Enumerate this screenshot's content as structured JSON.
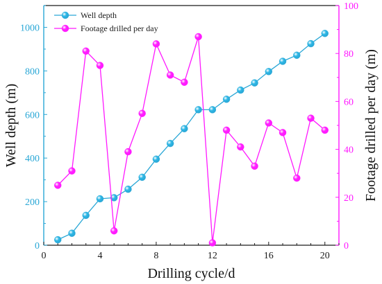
{
  "chart_data": {
    "type": "line",
    "xlabel": "Drilling cycle/d",
    "ylabel_left": "Well depth (m)",
    "ylabel_right": "Footage drilled per day (m)",
    "xlim": [
      0,
      21
    ],
    "ylim_left": [
      0,
      1100
    ],
    "ylim_right": [
      0,
      100
    ],
    "x_ticks": [
      0,
      4,
      8,
      12,
      16,
      20
    ],
    "y_left_ticks": [
      0,
      200,
      400,
      600,
      800,
      1000
    ],
    "y_right_ticks": [
      0,
      20,
      40,
      60,
      80,
      100
    ],
    "grid": false,
    "legend_position": "top-left",
    "x": [
      1,
      2,
      3,
      4,
      5,
      6,
      7,
      8,
      9,
      10,
      11,
      12,
      13,
      14,
      15,
      16,
      17,
      18,
      19,
      20
    ],
    "series": [
      {
        "name": "Well depth",
        "axis": "left",
        "color": "#29a7d6",
        "marker_color": "#2fb8e6",
        "values": [
          25,
          55,
          137,
          213,
          218,
          257,
          312,
          395,
          467,
          535,
          622,
          622,
          670,
          712,
          745,
          797,
          844,
          872,
          925,
          972
        ]
      },
      {
        "name": "Footage drilled per day",
        "axis": "right",
        "color": "#ff18ff",
        "marker_color": "#ff22ff",
        "values": [
          25,
          31,
          81,
          75,
          6,
          39,
          55,
          84,
          71,
          68,
          87,
          1,
          48,
          41,
          33,
          51,
          47,
          28,
          53,
          48
        ]
      }
    ],
    "colors": {
      "left_axis": "#29a7d6",
      "right_axis": "#ff18ff",
      "bottom_axis": "#1a1a1a"
    }
  }
}
